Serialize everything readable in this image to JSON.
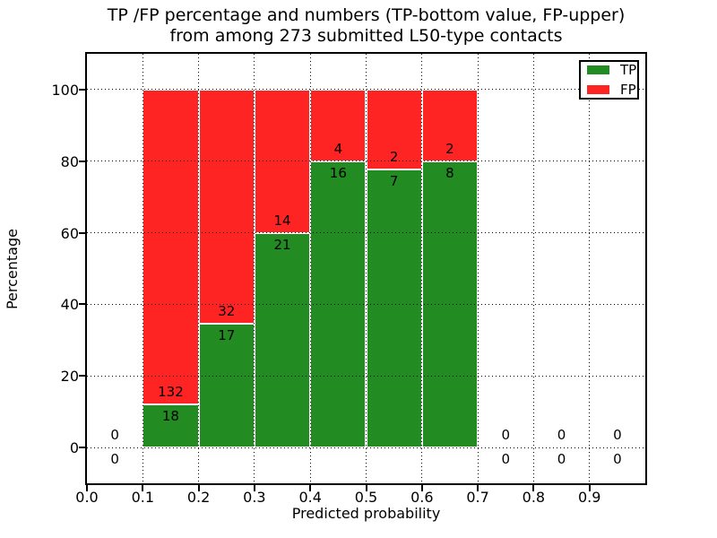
{
  "chart_data": {
    "type": "bar",
    "stacked": true,
    "title_lines": [
      "TP /FP percentage and numbers (TP-bottom value, FP-upper)",
      "from among 273 submitted L50-type contacts"
    ],
    "xlabel": "Predicted probability",
    "ylabel": "Percentage",
    "xlim": [
      0.0,
      1.0
    ],
    "ylim": [
      -10,
      110
    ],
    "xticks": [
      {
        "v": 0.0,
        "label": "0.0"
      },
      {
        "v": 0.1,
        "label": "0.1"
      },
      {
        "v": 0.2,
        "label": "0.2"
      },
      {
        "v": 0.3,
        "label": "0.3"
      },
      {
        "v": 0.4,
        "label": "0.4"
      },
      {
        "v": 0.5,
        "label": "0.5"
      },
      {
        "v": 0.6,
        "label": "0.6"
      },
      {
        "v": 0.7,
        "label": "0.7"
      },
      {
        "v": 0.8,
        "label": "0.8"
      },
      {
        "v": 0.9,
        "label": "0.9"
      }
    ],
    "yticks": [
      {
        "v": 0,
        "label": "0"
      },
      {
        "v": 20,
        "label": "20"
      },
      {
        "v": 40,
        "label": "40"
      },
      {
        "v": 60,
        "label": "60"
      },
      {
        "v": 80,
        "label": "80"
      },
      {
        "v": 100,
        "label": "100"
      }
    ],
    "grid": "dotted",
    "total_contacts": 273,
    "bin_width": 0.1,
    "bins": [
      {
        "range": [
          0.0,
          0.1
        ],
        "tp": 0,
        "fp": 0
      },
      {
        "range": [
          0.1,
          0.2
        ],
        "tp": 18,
        "fp": 132
      },
      {
        "range": [
          0.2,
          0.3
        ],
        "tp": 17,
        "fp": 32
      },
      {
        "range": [
          0.3,
          0.4
        ],
        "tp": 21,
        "fp": 14
      },
      {
        "range": [
          0.4,
          0.5
        ],
        "tp": 16,
        "fp": 4
      },
      {
        "range": [
          0.5,
          0.6
        ],
        "tp": 7,
        "fp": 2
      },
      {
        "range": [
          0.6,
          0.7
        ],
        "tp": 8,
        "fp": 2
      },
      {
        "range": [
          0.7,
          0.8
        ],
        "tp": 0,
        "fp": 0
      },
      {
        "range": [
          0.8,
          0.9
        ],
        "tp": 0,
        "fp": 0
      },
      {
        "range": [
          0.9,
          1.0
        ],
        "tp": 0,
        "fp": 0
      }
    ],
    "legend": {
      "position": "upper-right",
      "entries": [
        {
          "label": "TP",
          "color": "#228b22"
        },
        {
          "label": "FP",
          "color": "#ff2424"
        }
      ]
    },
    "colors": {
      "tp": "#228b22",
      "fp": "#ff2424",
      "grid": "#000000",
      "text": "#000000",
      "background": "#ffffff"
    }
  }
}
